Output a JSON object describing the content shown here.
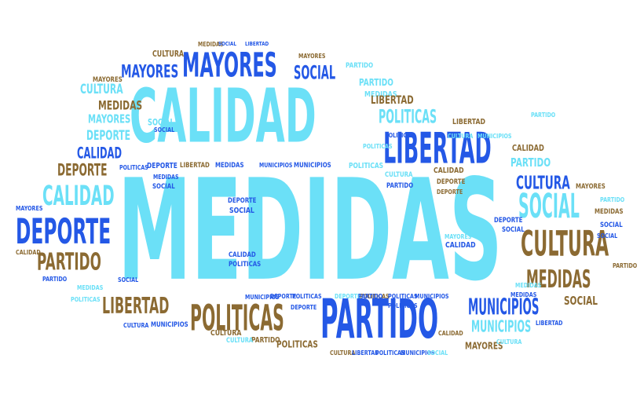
{
  "words": [
    {
      "text": "MEDIDAS",
      "color": "c1"
    },
    {
      "text": "CALIDAD",
      "color": "c1"
    },
    {
      "text": "PARTIDO",
      "color": "c2"
    },
    {
      "text": "LIBERTAD",
      "color": "c2"
    },
    {
      "text": "MAYORES",
      "color": "c2"
    },
    {
      "text": "MAYORES",
      "color": "c2"
    },
    {
      "text": "POLITICAS",
      "color": "c3"
    },
    {
      "text": "DEPORTE",
      "color": "c2"
    },
    {
      "text": "CULTURA",
      "color": "c3"
    },
    {
      "text": "CALIDAD",
      "color": "c1"
    },
    {
      "text": "SOCIAL",
      "color": "c1"
    },
    {
      "text": "PARTIDO",
      "color": "c3"
    },
    {
      "text": "MEDIDAS",
      "color": "c3"
    },
    {
      "text": "LIBERTAD",
      "color": "c3"
    },
    {
      "text": "MUNICIPIOS",
      "color": "c2"
    },
    {
      "text": "POLITICAS",
      "color": "c1"
    },
    {
      "text": "SOCIAL",
      "color": "c2"
    },
    {
      "text": "CULTURA",
      "color": "c2"
    },
    {
      "text": "DEPORTE",
      "color": "c3"
    },
    {
      "text": "CALIDAD",
      "color": "c2"
    },
    {
      "text": "DEPORTE",
      "color": "c1"
    },
    {
      "text": "CULTURA",
      "color": "c1"
    },
    {
      "text": "MEDIDAS",
      "color": "c3"
    },
    {
      "text": "MAYORES",
      "color": "c1"
    },
    {
      "text": "MEDIDAS",
      "color": "c1"
    },
    {
      "text": "SOCIAL",
      "color": "c1"
    },
    {
      "text": "MUNICIPIOS",
      "color": "c1"
    },
    {
      "text": "SOCIAL",
      "color": "c3"
    },
    {
      "text": "LIBERTAD",
      "color": "c3"
    },
    {
      "text": "MAYORES",
      "color": "c3"
    },
    {
      "text": "POLITICAS",
      "color": "c3"
    },
    {
      "text": "PARTIDO",
      "color": "c3"
    },
    {
      "text": "CULTURA",
      "color": "c1"
    },
    {
      "text": "PARTIDO",
      "color": "c1"
    },
    {
      "text": "PARTIDO",
      "color": "c1"
    },
    {
      "text": "PARTIDO",
      "color": "c1"
    },
    {
      "text": "CULTURA",
      "color": "c3"
    },
    {
      "text": "MEDIDAS",
      "color": "c3"
    },
    {
      "text": "MAYORES",
      "color": "c3"
    },
    {
      "text": "SOCIAL",
      "color": "c2"
    },
    {
      "text": "LIBERTAD",
      "color": "c2"
    },
    {
      "text": "CALIDAD",
      "color": "c3"
    },
    {
      "text": "PARTIDO",
      "color": "c1"
    },
    {
      "text": "MAYORES",
      "color": "c3"
    },
    {
      "text": "MEDIDAS",
      "color": "c3"
    },
    {
      "text": "PARTIDO",
      "color": "c1"
    },
    {
      "text": "SOCIAL",
      "color": "c2"
    },
    {
      "text": "POLITICAS",
      "color": "c1"
    },
    {
      "text": "MUNICIPIOS",
      "color": "c2"
    },
    {
      "text": "MEDIDAS",
      "color": "c2"
    },
    {
      "text": "LIBERTAD",
      "color": "c3"
    },
    {
      "text": "MEDIDAS",
      "color": "c2"
    },
    {
      "text": "DEPORTE",
      "color": "c2"
    },
    {
      "text": "POLITICAS",
      "color": "c2"
    },
    {
      "text": "DEPORTE",
      "color": "c3"
    },
    {
      "text": "CALIDAD",
      "color": "c3"
    },
    {
      "text": "DEPORTE",
      "color": "c3"
    },
    {
      "text": "MUNICIPIOS",
      "color": "c2"
    },
    {
      "text": "CULTURA",
      "color": "c1"
    },
    {
      "text": "PARTIDO",
      "color": "c2"
    },
    {
      "text": "SOCIAL",
      "color": "c2"
    },
    {
      "text": "DEPORTE",
      "color": "c2"
    },
    {
      "text": "SOCIAL",
      "color": "c2"
    },
    {
      "text": "CALIDAD",
      "color": "c2"
    },
    {
      "text": "POLITICAS",
      "color": "c2"
    },
    {
      "text": "MAYORES",
      "color": "c1"
    },
    {
      "text": "CALIDAD",
      "color": "c2"
    },
    {
      "text": "SOCIAL",
      "color": "c2"
    },
    {
      "text": "DEPORTE",
      "color": "c2"
    },
    {
      "text": "SOCIAL",
      "color": "c2"
    },
    {
      "text": "MAYORES",
      "color": "c2"
    },
    {
      "text": "CALIDAD",
      "color": "c3"
    },
    {
      "text": "PARTIDO",
      "color": "c2"
    },
    {
      "text": "MEDIDAS",
      "color": "c1"
    },
    {
      "text": "SOCIAL",
      "color": "c2"
    },
    {
      "text": "CULTURA",
      "color": "c2"
    },
    {
      "text": "MUNICIPIOS",
      "color": "c2"
    },
    {
      "text": "CULTURA",
      "color": "c3"
    },
    {
      "text": "PARTIDO",
      "color": "c3"
    },
    {
      "text": "POLITICAS",
      "color": "c3"
    },
    {
      "text": "CULTURA",
      "color": "c3"
    },
    {
      "text": "LIBERTAD",
      "color": "c2"
    },
    {
      "text": "POLITICAS",
      "color": "c2"
    },
    {
      "text": "MUNICIPIOS",
      "color": "c2"
    },
    {
      "text": "SOCIAL",
      "color": "c1"
    },
    {
      "text": "CALIDAD",
      "color": "c3"
    },
    {
      "text": "DEPORTE",
      "color": "c1"
    },
    {
      "text": "PARTIDO",
      "color": "c2"
    },
    {
      "text": "MEDIDAS",
      "color": "c1"
    },
    {
      "text": "LIBERTAD",
      "color": "c2"
    },
    {
      "text": "POLITICAS",
      "color": "c1"
    },
    {
      "text": "MUNICIPIOS",
      "color": "c2"
    },
    {
      "text": "MEDIDAS",
      "color": "c2"
    },
    {
      "text": "POLITICAS",
      "color": "c2"
    },
    {
      "text": "MUNICIPIOS",
      "color": "c2"
    },
    {
      "text": "DEPORTE",
      "color": "c2"
    },
    {
      "text": "POLITICAS",
      "color": "c2"
    },
    {
      "text": "POLITICAS",
      "color": "c2"
    },
    {
      "text": "CULTURA",
      "color": "c1"
    },
    {
      "text": "MUNICIPIOS",
      "color": "c1"
    },
    {
      "text": "LIBERTAD",
      "color": "c3"
    },
    {
      "text": "POLITICAS",
      "color": "c1"
    },
    {
      "text": "MAYORES",
      "color": "c3"
    },
    {
      "text": "SOCIAL",
      "color": "c2"
    },
    {
      "text": "DEPORTE",
      "color": "c2"
    },
    {
      "text": "POLITICAS",
      "color": "c2"
    },
    {
      "text": "CULTURA",
      "color": "c1"
    }
  ]
}
